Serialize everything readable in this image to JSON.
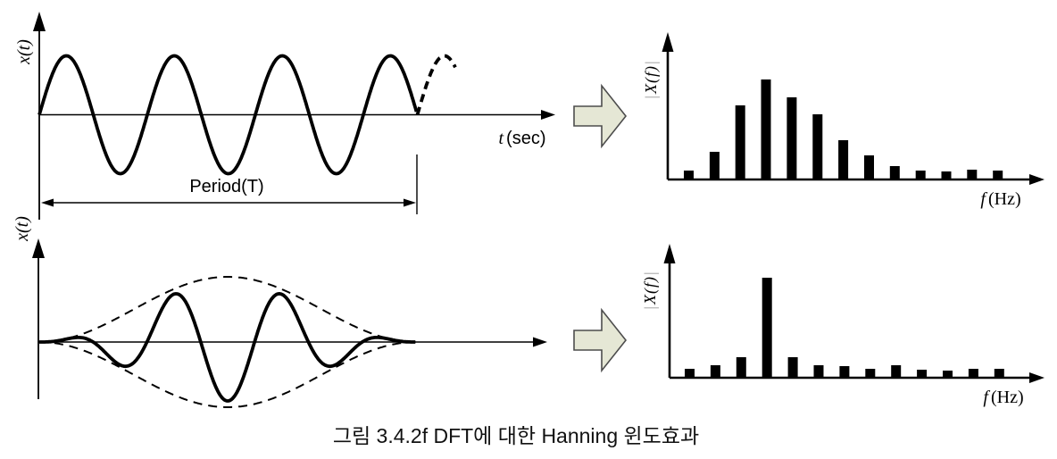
{
  "colors": {
    "ink": "#000000",
    "bar_color": "#000000",
    "block_arrow_fill": "#e5e7d5",
    "block_arrow_stroke": "#4d4d4d",
    "pipe_gray": "#999999",
    "background": "#ffffff"
  },
  "caption": {
    "text": "그림 3.4.2f DFT에 대한 Hanning 윈도효과"
  },
  "icons": {
    "transform_top": "right-block-arrow-icon",
    "transform_bottom": "right-block-arrow-icon"
  },
  "panels": {
    "time_unwindowed": {
      "ylabel": "x(t)",
      "xlabel_var": "t",
      "xlabel_unit": "(sec)",
      "period_label": "Period(T)",
      "signal": {
        "shape": "sine",
        "solid_cycles": 3.5,
        "dashed_periodic_extension": true
      }
    },
    "time_windowed": {
      "ylabel": "x(t)",
      "signal": {
        "shape": "sine",
        "cycles": 3.5,
        "window": "Hanning",
        "envelope_style": "dashed"
      }
    }
  },
  "chart_data": [
    {
      "type": "bar",
      "panel": "top-right-spectrum",
      "ylabel": "|X(f)|",
      "ylabel_parts": [
        "|",
        "X(f)",
        "|"
      ],
      "xlabel": "f(Hz)",
      "xlabel_var": "f",
      "xlabel_unit": "(Hz)",
      "values": [
        10,
        31,
        83,
        112,
        92,
        73,
        44,
        27,
        15,
        10,
        9,
        11,
        10
      ],
      "ylim": [
        0,
        120
      ],
      "grid": false,
      "legend": false
    },
    {
      "type": "bar",
      "panel": "bottom-right-spectrum",
      "ylabel": "|X(f)|",
      "ylabel_parts": [
        "|",
        "X(f)",
        "|"
      ],
      "xlabel": "f(Hz)",
      "xlabel_var": "f",
      "xlabel_unit": "(Hz)",
      "values": [
        10,
        14,
        23,
        112,
        23,
        14,
        13,
        10,
        14,
        9,
        8,
        10,
        10
      ],
      "ylim": [
        0,
        120
      ],
      "grid": false,
      "legend": false
    }
  ]
}
